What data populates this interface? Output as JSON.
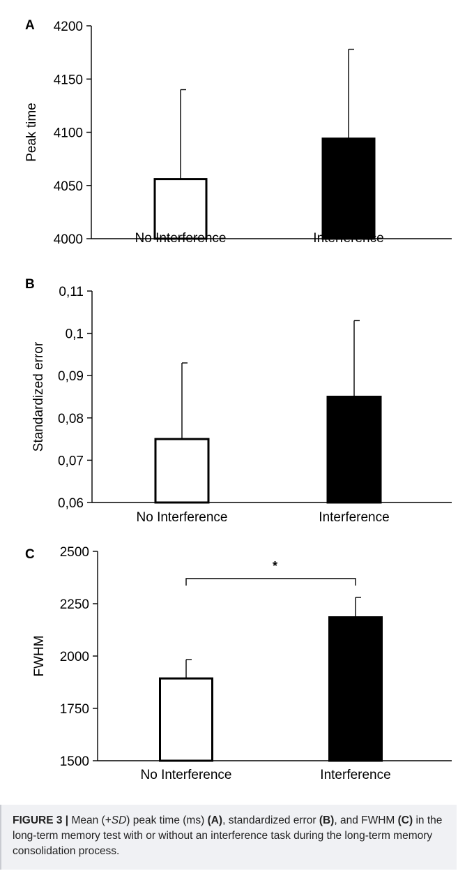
{
  "chart_data": [
    {
      "type": "bar",
      "panel": "A",
      "ylabel": "Peak time",
      "xlabel": "",
      "categories": [
        "No Interference",
        "Interference"
      ],
      "values": [
        4056,
        4094
      ],
      "sd": [
        84,
        84
      ],
      "bar_fill": [
        "#ffffff",
        "#000000"
      ],
      "ylim": [
        4000,
        4200
      ],
      "yticks": [
        4000,
        4050,
        4100,
        4150,
        4200
      ],
      "ytick_labels": [
        "4000",
        "4050",
        "4100",
        "4150",
        "4200"
      ],
      "grid": false,
      "significance": null
    },
    {
      "type": "bar",
      "panel": "B",
      "ylabel": "Standardized error",
      "xlabel": "",
      "categories": [
        "No Interference",
        "Interference"
      ],
      "values": [
        0.075,
        0.085
      ],
      "sd": [
        0.018,
        0.018
      ],
      "bar_fill": [
        "#ffffff",
        "#000000"
      ],
      "ylim": [
        0.06,
        0.11
      ],
      "yticks": [
        0.06,
        0.07,
        0.08,
        0.09,
        0.1,
        0.11
      ],
      "ytick_labels": [
        "0,06",
        "0,07",
        "0,08",
        "0,09",
        "0,1",
        "0,11"
      ],
      "grid": false,
      "significance": null
    },
    {
      "type": "bar",
      "panel": "C",
      "ylabel": "FWHM",
      "xlabel": "",
      "categories": [
        "No Interference",
        "Interference"
      ],
      "values": [
        1893,
        2185
      ],
      "sd": [
        90,
        95
      ],
      "bar_fill": [
        "#ffffff",
        "#000000"
      ],
      "ylim": [
        1500,
        2500
      ],
      "yticks": [
        1500,
        1750,
        2000,
        2250,
        2500
      ],
      "ytick_labels": [
        "1500",
        "1750",
        "2000",
        "2250",
        "2500"
      ],
      "grid": false,
      "significance": {
        "between": [
          0,
          1
        ],
        "label": "*"
      }
    }
  ],
  "caption": {
    "figure_number": "FIGURE 3 |",
    "parts": [
      {
        "text": " Mean (+",
        "style": "normal"
      },
      {
        "text": "SD",
        "style": "italic"
      },
      {
        "text": ") peak time (ms) ",
        "style": "normal"
      },
      {
        "text": "(A)",
        "style": "bold"
      },
      {
        "text": ", standardized error ",
        "style": "normal"
      },
      {
        "text": "(B)",
        "style": "bold"
      },
      {
        "text": ", and FWHM ",
        "style": "normal"
      },
      {
        "text": "(C)",
        "style": "bold"
      },
      {
        "text": " in the long-term memory test with or without an interference task during the long-term memory consolidation process.",
        "style": "normal"
      }
    ]
  }
}
